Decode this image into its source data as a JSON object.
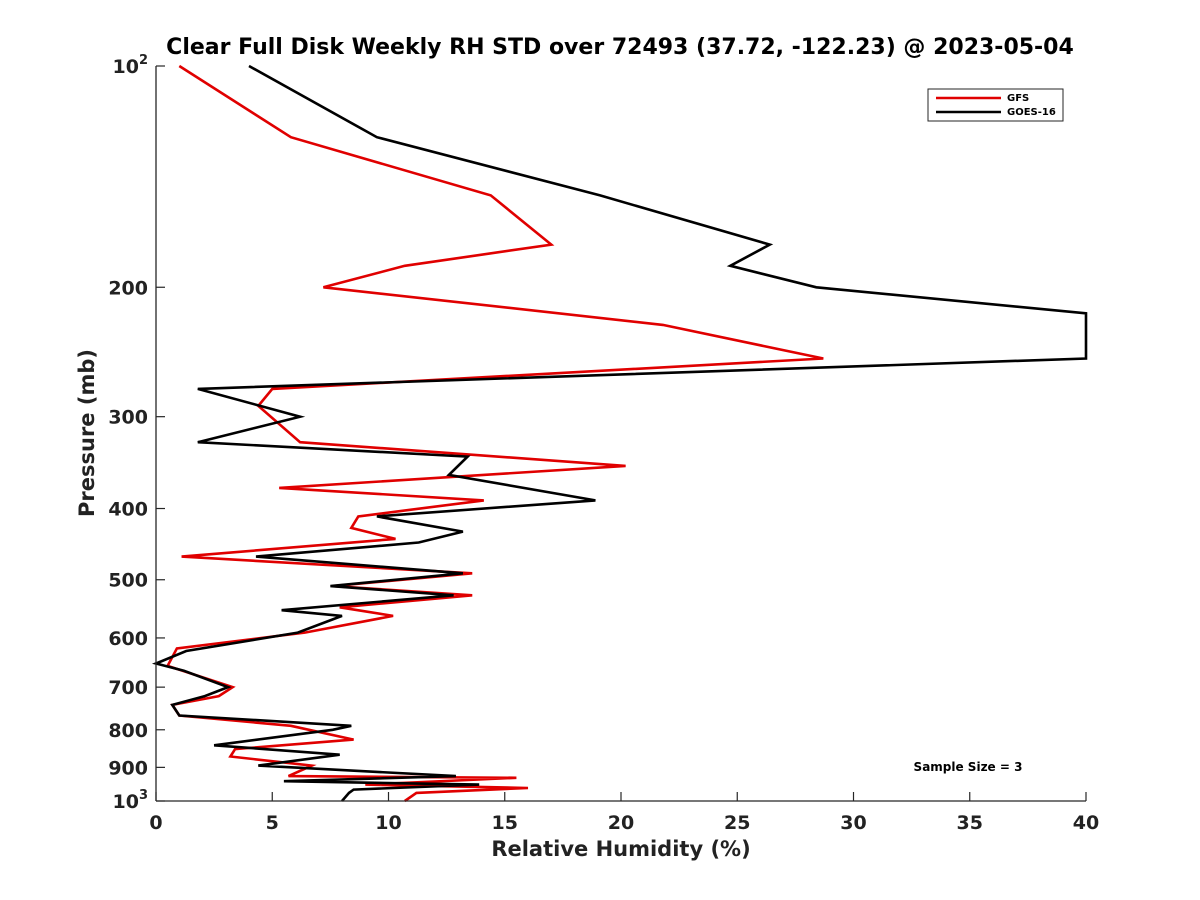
{
  "chart_data": {
    "type": "line",
    "title": "Clear Full Disk Weekly RH STD over 72493 (37.72, -122.23) @ 2023-05-04",
    "xlabel": "Relative Humidity (%)",
    "ylabel": "Pressure (mb)",
    "xlim": [
      0,
      40
    ],
    "ylim": [
      100,
      1000
    ],
    "y_scale": "log",
    "y_reversed": true,
    "x_ticks": [
      "0",
      "5",
      "10",
      "15",
      "20",
      "25",
      "30",
      "35",
      "40"
    ],
    "y_ticks": [
      {
        "value": 100,
        "base": "10",
        "exp": "2"
      },
      {
        "value": 200,
        "label": "200"
      },
      {
        "value": 300,
        "label": "300"
      },
      {
        "value": 400,
        "label": "400"
      },
      {
        "value": 500,
        "label": "500"
      },
      {
        "value": 600,
        "label": "600"
      },
      {
        "value": 700,
        "label": "700"
      },
      {
        "value": 800,
        "label": "800"
      },
      {
        "value": 900,
        "label": "900"
      },
      {
        "value": 1000,
        "base": "10",
        "exp": "3"
      }
    ],
    "legend_position": "top-right",
    "annotation": "Sample Size = 3",
    "series": [
      {
        "name": "GFS",
        "color": "#e00000",
        "points": [
          [
            1.0,
            100
          ],
          [
            5.8,
            125
          ],
          [
            14.4,
            150
          ],
          [
            17.0,
            175
          ],
          [
            10.7,
            187
          ],
          [
            7.2,
            200
          ],
          [
            21.8,
            225
          ],
          [
            28.7,
            250
          ],
          [
            5.0,
            275
          ],
          [
            4.4,
            290
          ],
          [
            6.2,
            325
          ],
          [
            20.2,
            350
          ],
          [
            5.3,
            375
          ],
          [
            14.1,
            390
          ],
          [
            8.7,
            410
          ],
          [
            8.4,
            425
          ],
          [
            10.3,
            440
          ],
          [
            1.1,
            465
          ],
          [
            13.6,
            490
          ],
          [
            7.6,
            510
          ],
          [
            13.6,
            525
          ],
          [
            7.9,
            545
          ],
          [
            10.2,
            560
          ],
          [
            6.4,
            590
          ],
          [
            0.9,
            620
          ],
          [
            0.5,
            655
          ],
          [
            3.3,
            700
          ],
          [
            2.7,
            720
          ],
          [
            0.7,
            740
          ],
          [
            1.0,
            765
          ],
          [
            5.8,
            790
          ],
          [
            8.5,
            825
          ],
          [
            3.4,
            850
          ],
          [
            3.2,
            870
          ],
          [
            6.7,
            895
          ],
          [
            5.7,
            925
          ],
          [
            15.5,
            930
          ],
          [
            9.0,
            950
          ],
          [
            16.0,
            960
          ],
          [
            11.2,
            975
          ],
          [
            10.7,
            1000
          ]
        ]
      },
      {
        "name": "GOES-16",
        "color": "#000000",
        "points": [
          [
            4.0,
            100
          ],
          [
            9.5,
            125
          ],
          [
            19.1,
            150
          ],
          [
            26.4,
            175
          ],
          [
            24.7,
            187
          ],
          [
            28.4,
            200
          ],
          [
            40.0,
            217
          ],
          [
            40.0,
            250
          ],
          [
            1.8,
            275
          ],
          [
            6.2,
            300
          ],
          [
            1.8,
            325
          ],
          [
            13.4,
            340
          ],
          [
            12.6,
            360
          ],
          [
            18.9,
            390
          ],
          [
            9.5,
            410
          ],
          [
            13.2,
            430
          ],
          [
            11.3,
            445
          ],
          [
            4.3,
            465
          ],
          [
            13.2,
            490
          ],
          [
            7.5,
            510
          ],
          [
            12.8,
            525
          ],
          [
            5.4,
            550
          ],
          [
            8.0,
            560
          ],
          [
            6.1,
            590
          ],
          [
            1.3,
            625
          ],
          [
            0.0,
            650
          ],
          [
            1.2,
            665
          ],
          [
            3.1,
            700
          ],
          [
            2.1,
            720
          ],
          [
            0.7,
            740
          ],
          [
            1.0,
            765
          ],
          [
            8.4,
            790
          ],
          [
            7.6,
            800
          ],
          [
            2.5,
            840
          ],
          [
            7.9,
            865
          ],
          [
            4.4,
            895
          ],
          [
            12.9,
            925
          ],
          [
            5.5,
            940
          ],
          [
            13.9,
            950
          ],
          [
            8.5,
            965
          ],
          [
            8.3,
            975
          ],
          [
            8.0,
            1000
          ]
        ]
      }
    ]
  }
}
